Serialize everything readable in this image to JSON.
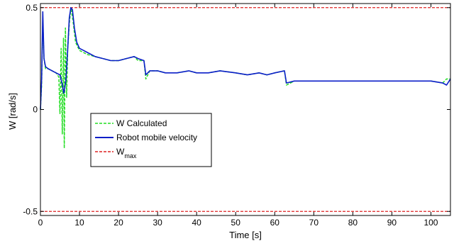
{
  "chart_data": {
    "type": "line",
    "title": "",
    "xlabel": "Time [s]",
    "ylabel": "W  [rad/s]",
    "xlim": [
      0,
      105
    ],
    "ylim": [
      -0.52,
      0.52
    ],
    "xticks": [
      0,
      10,
      20,
      30,
      40,
      50,
      60,
      70,
      80,
      90,
      100
    ],
    "yticks": [
      {
        "value": 0.5,
        "label": "0.5"
      },
      {
        "value": 0,
        "label": "0"
      },
      {
        "value": -0.5,
        "label": "-0.5"
      }
    ],
    "grid": false,
    "legend_position": "middle-left",
    "series": [
      {
        "name": "W  Calculated",
        "color": "#22dd22",
        "style": "dashed",
        "points": [
          [
            0,
            0
          ],
          [
            0.3,
            0.12
          ],
          [
            0.6,
            0.45
          ],
          [
            0.9,
            0.25
          ],
          [
            1.3,
            0.2
          ],
          [
            2,
            0.2
          ],
          [
            3,
            0.19
          ],
          [
            4,
            0.18
          ],
          [
            4.7,
            0.16
          ],
          [
            5,
            -0.02
          ],
          [
            5.3,
            0.3
          ],
          [
            5.6,
            -0.12
          ],
          [
            5.9,
            0.35
          ],
          [
            6.1,
            -0.19
          ],
          [
            6.4,
            0.4
          ],
          [
            6.7,
            0.06
          ],
          [
            7,
            0.3
          ],
          [
            7.4,
            0.42
          ],
          [
            7.8,
            0.5
          ],
          [
            8.3,
            0.44
          ],
          [
            9,
            0.33
          ],
          [
            10,
            0.29
          ],
          [
            11,
            0.28
          ],
          [
            12,
            0.27
          ],
          [
            14,
            0.26
          ],
          [
            16,
            0.25
          ],
          [
            18,
            0.24
          ],
          [
            20,
            0.24
          ],
          [
            22,
            0.25
          ],
          [
            24,
            0.26
          ],
          [
            25,
            0.24
          ],
          [
            26.5,
            0.24
          ],
          [
            27,
            0.15
          ],
          [
            28,
            0.19
          ],
          [
            30,
            0.19
          ],
          [
            32,
            0.18
          ],
          [
            35,
            0.18
          ],
          [
            38,
            0.19
          ],
          [
            40,
            0.18
          ],
          [
            43,
            0.18
          ],
          [
            46,
            0.19
          ],
          [
            50,
            0.18
          ],
          [
            53,
            0.17
          ],
          [
            56,
            0.18
          ],
          [
            58,
            0.17
          ],
          [
            60,
            0.18
          ],
          [
            62.5,
            0.19
          ],
          [
            63,
            0.12
          ],
          [
            65,
            0.14
          ],
          [
            68,
            0.14
          ],
          [
            70,
            0.14
          ],
          [
            75,
            0.14
          ],
          [
            80,
            0.14
          ],
          [
            85,
            0.14
          ],
          [
            90,
            0.14
          ],
          [
            95,
            0.14
          ],
          [
            100,
            0.14
          ],
          [
            103,
            0.13
          ],
          [
            104,
            0.15
          ],
          [
            105,
            0.15
          ]
        ]
      },
      {
        "name": "Robot mobile velocity",
        "color": "#0a1ec8",
        "style": "solid",
        "points": [
          [
            0,
            0
          ],
          [
            0.3,
            0.15
          ],
          [
            0.6,
            0.48
          ],
          [
            0.9,
            0.25
          ],
          [
            1.3,
            0.21
          ],
          [
            2,
            0.2
          ],
          [
            3,
            0.19
          ],
          [
            4,
            0.18
          ],
          [
            5,
            0.17
          ],
          [
            5.5,
            0.13
          ],
          [
            6,
            0.08
          ],
          [
            6.5,
            0.14
          ],
          [
            7,
            0.3
          ],
          [
            7.4,
            0.45
          ],
          [
            7.8,
            0.5
          ],
          [
            8.2,
            0.49
          ],
          [
            8.7,
            0.4
          ],
          [
            9.3,
            0.33
          ],
          [
            10,
            0.3
          ],
          [
            11,
            0.29
          ],
          [
            12,
            0.28
          ],
          [
            14,
            0.26
          ],
          [
            16,
            0.25
          ],
          [
            18,
            0.24
          ],
          [
            20,
            0.24
          ],
          [
            22,
            0.25
          ],
          [
            24,
            0.26
          ],
          [
            25,
            0.25
          ],
          [
            26.5,
            0.24
          ],
          [
            27,
            0.17
          ],
          [
            28,
            0.19
          ],
          [
            30,
            0.19
          ],
          [
            32,
            0.18
          ],
          [
            35,
            0.18
          ],
          [
            38,
            0.19
          ],
          [
            40,
            0.18
          ],
          [
            43,
            0.18
          ],
          [
            46,
            0.19
          ],
          [
            50,
            0.18
          ],
          [
            53,
            0.17
          ],
          [
            56,
            0.18
          ],
          [
            58,
            0.17
          ],
          [
            60,
            0.18
          ],
          [
            62.5,
            0.19
          ],
          [
            63,
            0.13
          ],
          [
            65,
            0.14
          ],
          [
            68,
            0.14
          ],
          [
            70,
            0.14
          ],
          [
            75,
            0.14
          ],
          [
            80,
            0.14
          ],
          [
            85,
            0.14
          ],
          [
            90,
            0.14
          ],
          [
            95,
            0.14
          ],
          [
            100,
            0.14
          ],
          [
            103,
            0.13
          ],
          [
            104,
            0.12
          ],
          [
            105,
            0.15
          ]
        ]
      }
    ],
    "reference_lines": [
      {
        "legend_text": "W",
        "legend_subscript": "max",
        "color": "#dd2222",
        "style": "dashed",
        "y_values": [
          0.5,
          -0.5
        ]
      }
    ]
  }
}
